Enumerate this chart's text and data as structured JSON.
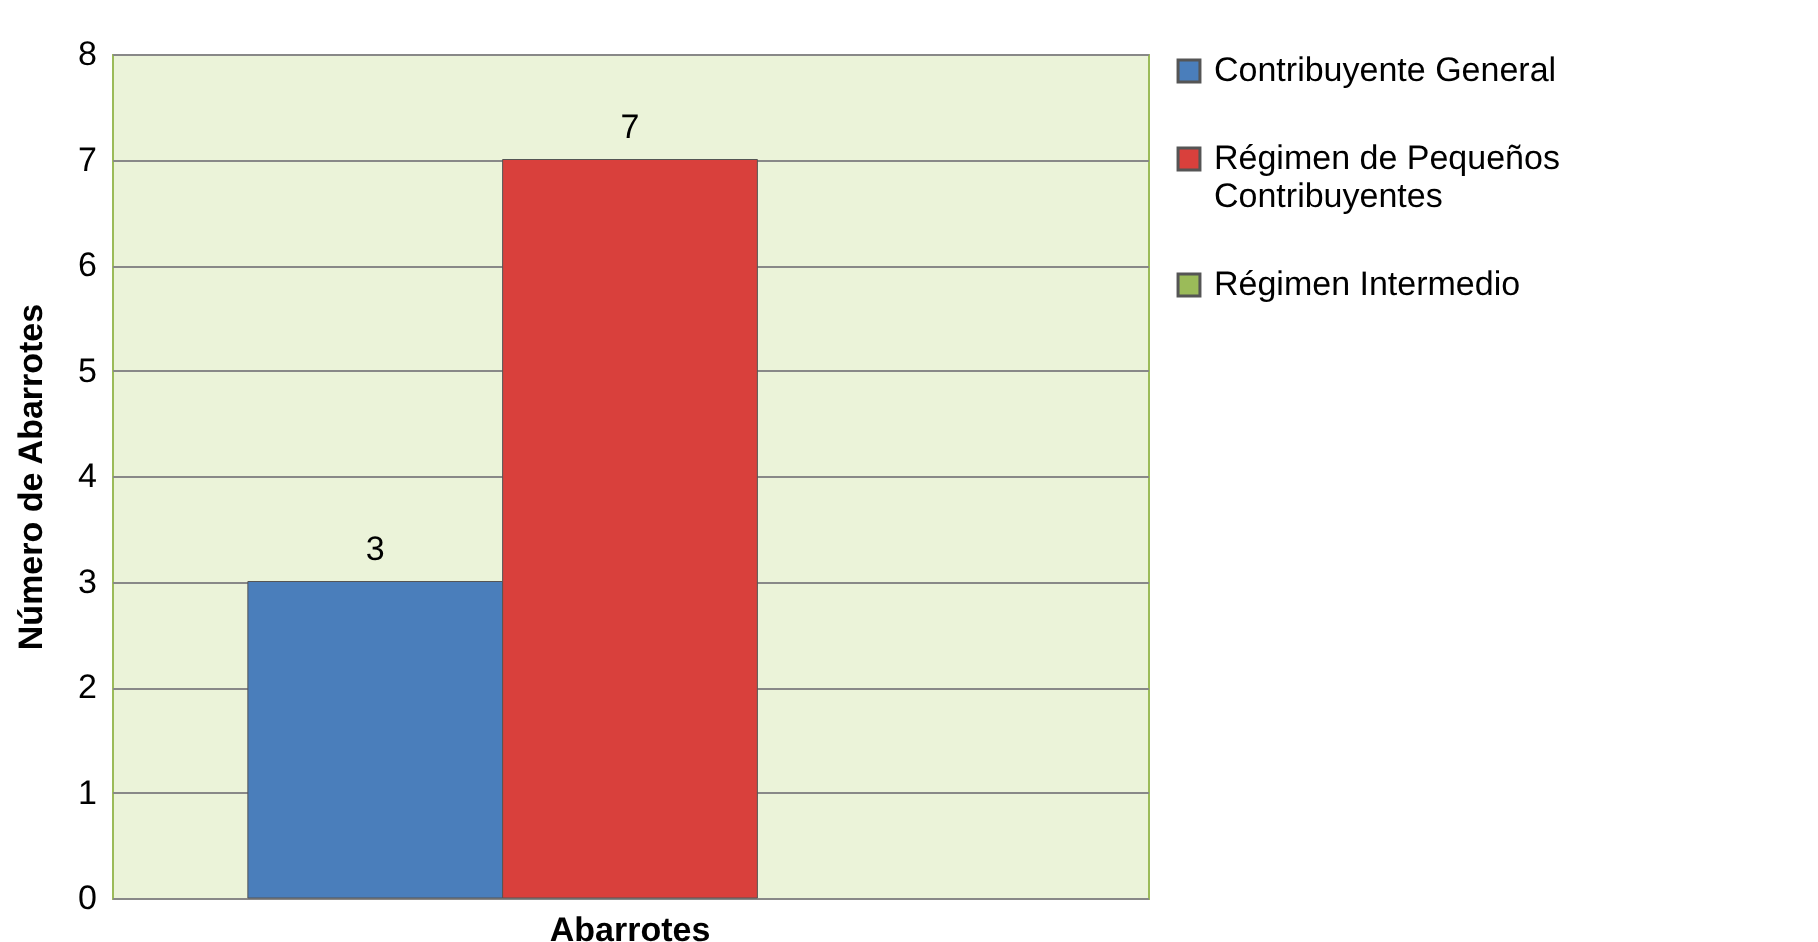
{
  "chart_data": {
    "type": "bar",
    "ylabel": "Número de Abarrotes",
    "categories": [
      "Abarrotes"
    ],
    "series": [
      {
        "name": "Contribuyente General",
        "color": "#4a7ebb",
        "values": [
          3
        ]
      },
      {
        "name": "Régimen de Pequeños Contribuyentes",
        "color": "#d9403c",
        "values": [
          7
        ]
      },
      {
        "name": "Régimen Intermedio",
        "color": "#9bbb59",
        "values": [
          null
        ]
      }
    ],
    "ylim": [
      0,
      8
    ],
    "yticks": [
      0,
      1,
      2,
      3,
      4,
      5,
      6,
      7,
      8
    ],
    "grid": "y",
    "legend": "right",
    "data_labels": true
  }
}
